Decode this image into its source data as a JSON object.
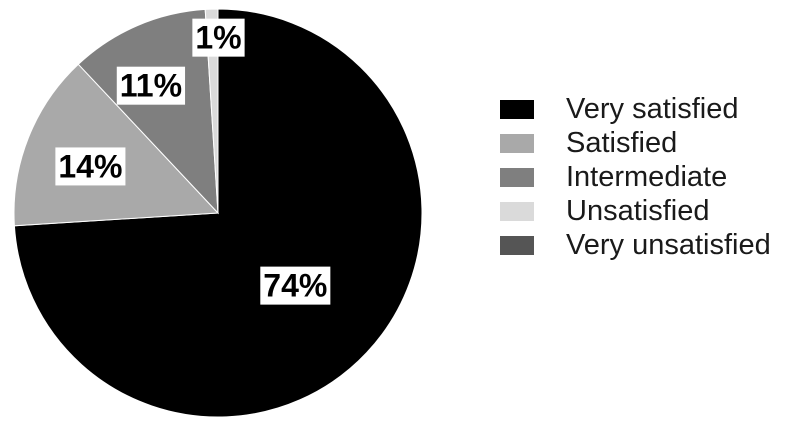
{
  "chart_data": {
    "type": "pie",
    "categories": [
      "Very satisfied",
      "Satisfied",
      "Intermediate",
      "Unsatisfied",
      "Very unsatisfied"
    ],
    "values": [
      74,
      14,
      11,
      1,
      0
    ],
    "data_labels": [
      "74%",
      "14%",
      "11%",
      "1%",
      ""
    ],
    "colors": [
      "#000000",
      "#a9a9a9",
      "#7f7f7f",
      "#dadada",
      "#555555"
    ],
    "title": "",
    "legend_position": "right"
  }
}
